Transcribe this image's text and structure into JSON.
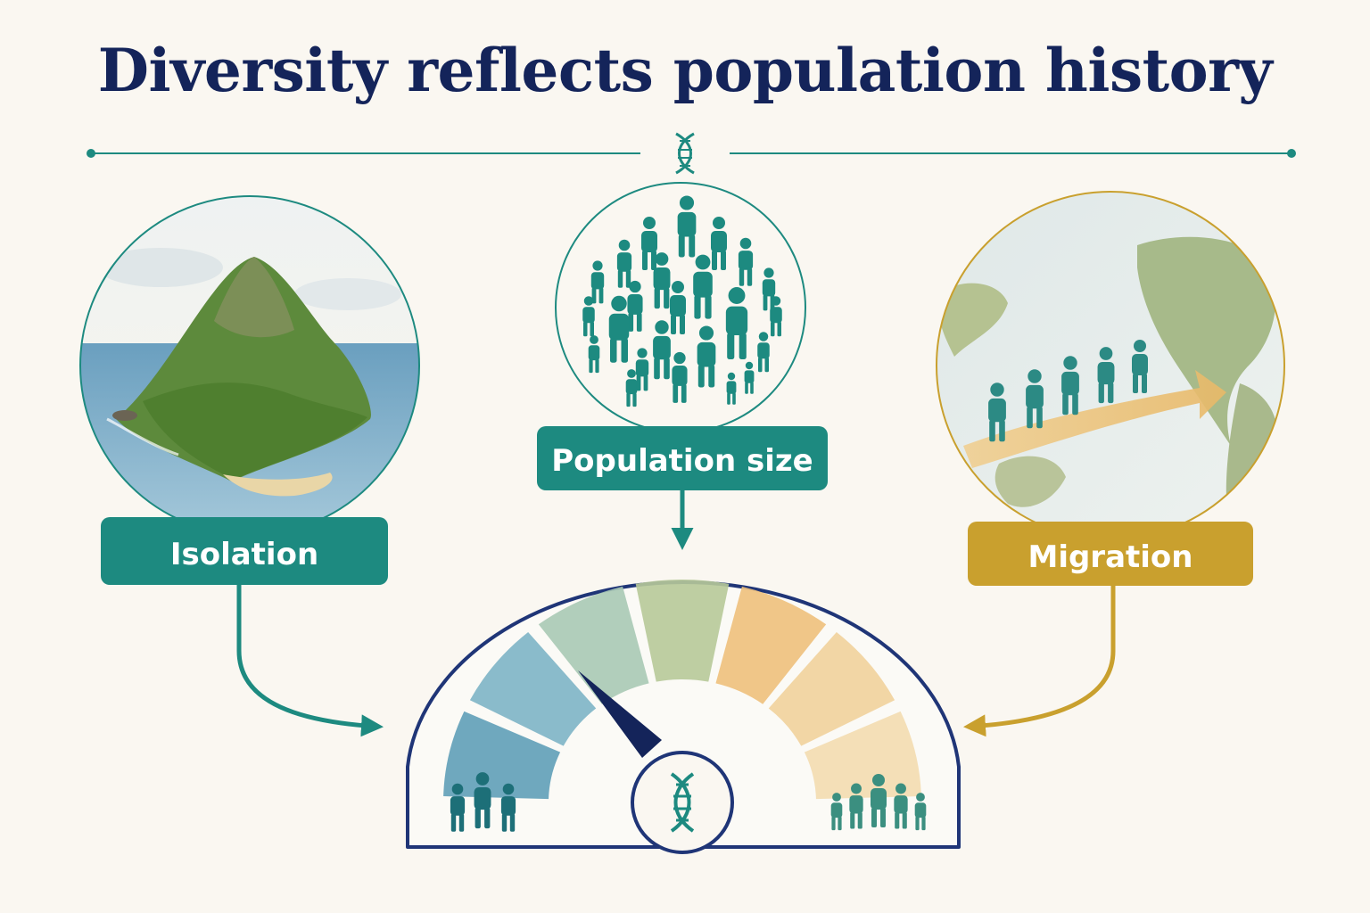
{
  "title": "Diversity reflects population history",
  "factors": {
    "isolation": {
      "label": "Isolation",
      "color": "#1d8a80"
    },
    "population_size": {
      "label": "Population size",
      "color": "#1d8a80"
    },
    "migration": {
      "label": "Migration",
      "color": "#c9a02e"
    }
  },
  "gauge": {
    "segment_colors": [
      "#5f9fb8",
      "#7db4c6",
      "#a9c9b5",
      "#b7c999",
      "#eec07c",
      "#f1d29c",
      "#f3dcb0"
    ],
    "needle_color": "#14245a",
    "frame_color": "#1f3577"
  },
  "icons": {
    "header_divider": "dna-icon",
    "gauge_hub": "dna-icon",
    "gauge_low": "small-group-icon",
    "gauge_high": "large-group-icon"
  }
}
